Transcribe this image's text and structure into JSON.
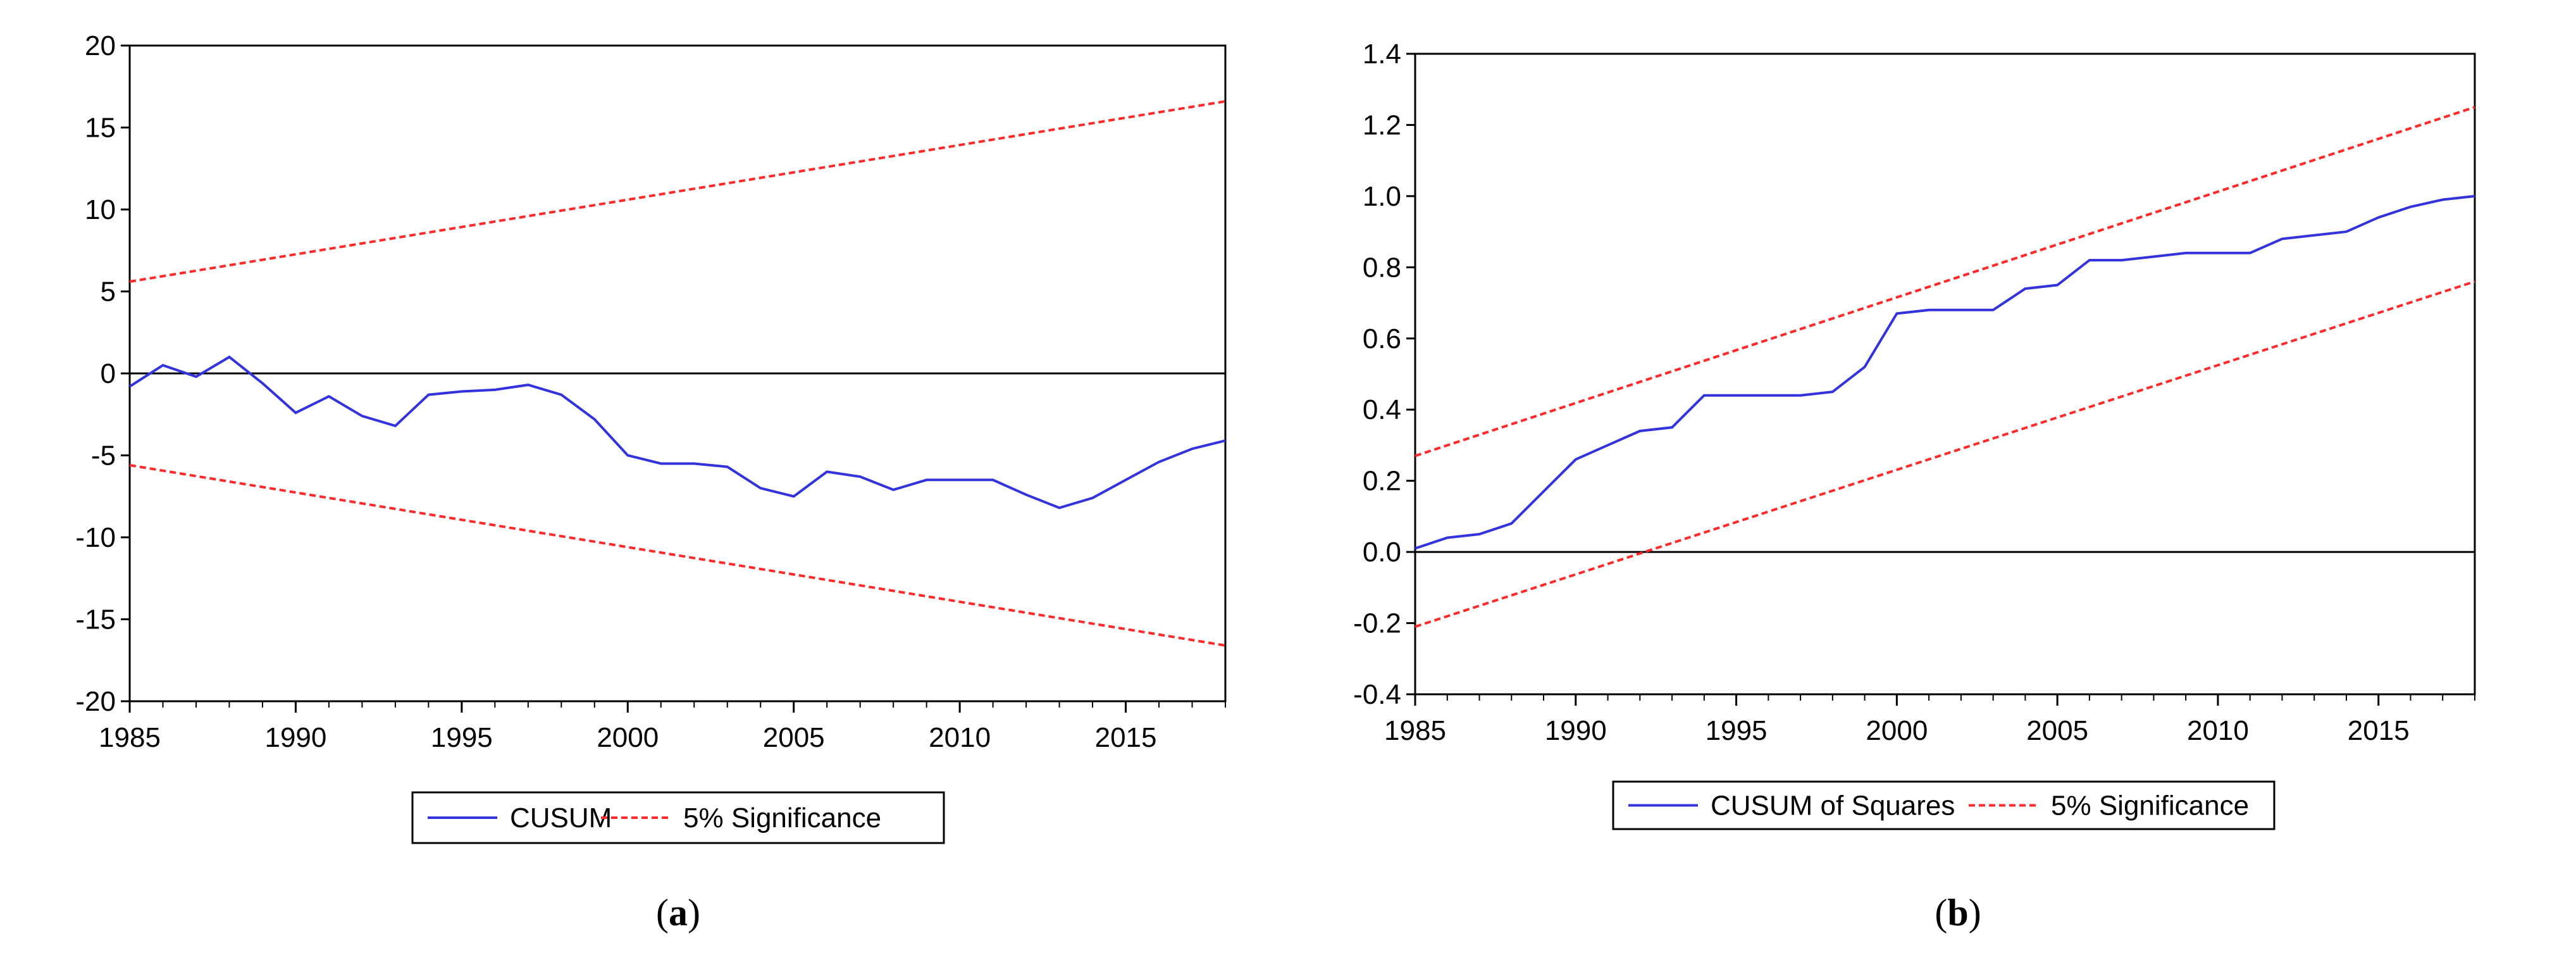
{
  "chart_data": [
    {
      "type": "line",
      "caption_letter": "a",
      "xlim": [
        1985,
        2018
      ],
      "ylim": [
        -20,
        20
      ],
      "xticks": [
        "1985",
        "1990",
        "1995",
        "2000",
        "2005",
        "2010",
        "2015"
      ],
      "yticks": [
        "20",
        "15",
        "10",
        "5",
        "0",
        "-5",
        "-10",
        "-15",
        "-20"
      ],
      "reference_line": 0,
      "legend": [
        "CUSUM",
        "5% Significance"
      ],
      "colors": {
        "series": "#3333dd",
        "bound": "#ff2a2a"
      },
      "series": [
        {
          "name": "CUSUM",
          "x": [
            1985,
            1986,
            1987,
            1988,
            1989,
            1990,
            1991,
            1992,
            1993,
            1994,
            1995,
            1996,
            1997,
            1998,
            1999,
            2000,
            2001,
            2002,
            2003,
            2004,
            2005,
            2006,
            2007,
            2008,
            2009,
            2010,
            2011,
            2012,
            2013,
            2014,
            2015,
            2016,
            2017,
            2018
          ],
          "y": [
            -0.8,
            0.5,
            -0.2,
            1.0,
            -0.6,
            -2.4,
            -1.4,
            -2.6,
            -3.2,
            -1.3,
            -1.1,
            -1.0,
            -0.7,
            -1.3,
            -2.8,
            -5.0,
            -5.5,
            -5.5,
            -5.7,
            -7.0,
            -7.5,
            -6.0,
            -6.3,
            -7.1,
            -6.5,
            -6.5,
            -6.5,
            -7.4,
            -8.2,
            -7.6,
            -6.5,
            -5.4,
            -4.6,
            -4.1
          ]
        },
        {
          "name": "5% Significance (upper)",
          "x": [
            1985,
            2018
          ],
          "y": [
            5.6,
            16.6
          ]
        },
        {
          "name": "5% Significance (lower)",
          "x": [
            1985,
            2018
          ],
          "y": [
            -5.6,
            -16.6
          ]
        }
      ]
    },
    {
      "type": "line",
      "caption_letter": "b",
      "xlim": [
        1985,
        2018
      ],
      "ylim": [
        -0.4,
        1.4
      ],
      "xticks": [
        "1985",
        "1990",
        "1995",
        "2000",
        "2005",
        "2010",
        "2015"
      ],
      "yticks": [
        "1.4",
        "1.2",
        "1.0",
        "0.8",
        "0.6",
        "0.4",
        "0.2",
        "0.0",
        "-0.2",
        "-0.4"
      ],
      "reference_line": 0,
      "legend": [
        "CUSUM of Squares",
        "5% Significance"
      ],
      "colors": {
        "series": "#3333dd",
        "bound": "#ff2a2a"
      },
      "series": [
        {
          "name": "CUSUM of Squares",
          "x": [
            1985,
            1986,
            1987,
            1988,
            1989,
            1990,
            1991,
            1992,
            1993,
            1994,
            1995,
            1996,
            1997,
            1998,
            1999,
            2000,
            2001,
            2002,
            2003,
            2004,
            2005,
            2006,
            2007,
            2008,
            2009,
            2010,
            2011,
            2012,
            2013,
            2014,
            2015,
            2016,
            2017,
            2018
          ],
          "y": [
            0.01,
            0.04,
            0.05,
            0.08,
            0.17,
            0.26,
            0.3,
            0.34,
            0.35,
            0.44,
            0.44,
            0.44,
            0.44,
            0.45,
            0.52,
            0.67,
            0.68,
            0.68,
            0.68,
            0.74,
            0.75,
            0.82,
            0.82,
            0.83,
            0.84,
            0.84,
            0.84,
            0.88,
            0.89,
            0.9,
            0.94,
            0.97,
            0.99,
            1.0
          ]
        },
        {
          "name": "5% Significance (upper)",
          "x": [
            1985,
            2018
          ],
          "y": [
            0.27,
            1.25
          ]
        },
        {
          "name": "5% Significance (lower)",
          "x": [
            1985,
            2018
          ],
          "y": [
            -0.21,
            0.76
          ]
        }
      ]
    }
  ]
}
